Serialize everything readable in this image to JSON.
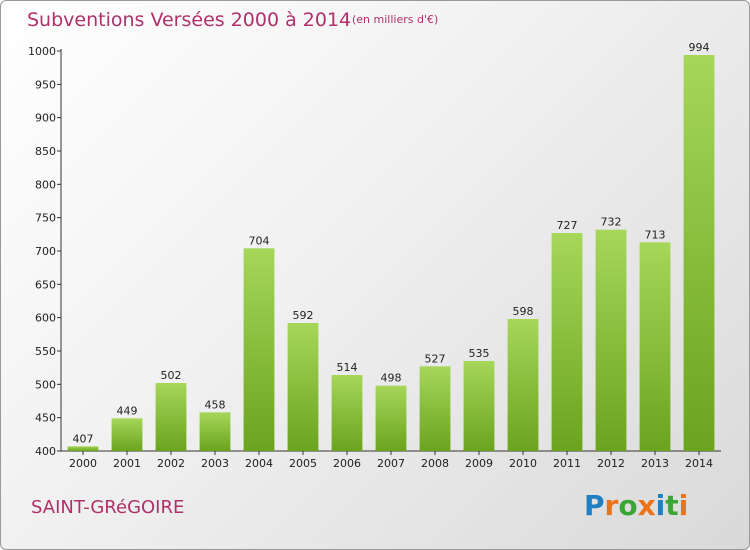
{
  "header": {
    "title": "Subventions Versées 2000 à 2014",
    "unit_note": "(en milliers d'€)"
  },
  "footer": {
    "commune": "SAINT-GRéGOIRE",
    "logo": "Proxiti"
  },
  "colors": {
    "title": "#b0306a",
    "bar_light": "#a6d65a",
    "bar_dark": "#6aa41f",
    "logo_letters": [
      "#1f7fc4",
      "#e8731b",
      "#3aa635",
      "#e8731b",
      "#1f7fc4",
      "#3aa635",
      "#e8731b"
    ]
  },
  "chart_data": {
    "type": "bar",
    "categories": [
      "2000",
      "2001",
      "2002",
      "2003",
      "2004",
      "2005",
      "2006",
      "2007",
      "2008",
      "2009",
      "2010",
      "2011",
      "2012",
      "2013",
      "2014"
    ],
    "values": [
      407,
      449,
      502,
      458,
      704,
      592,
      514,
      498,
      527,
      535,
      598,
      727,
      732,
      713,
      994
    ],
    "ylim": [
      400,
      1000
    ],
    "yticks": [
      400,
      450,
      500,
      550,
      600,
      650,
      700,
      750,
      800,
      850,
      900,
      950,
      1000
    ],
    "grid": false,
    "data_labels": true
  }
}
